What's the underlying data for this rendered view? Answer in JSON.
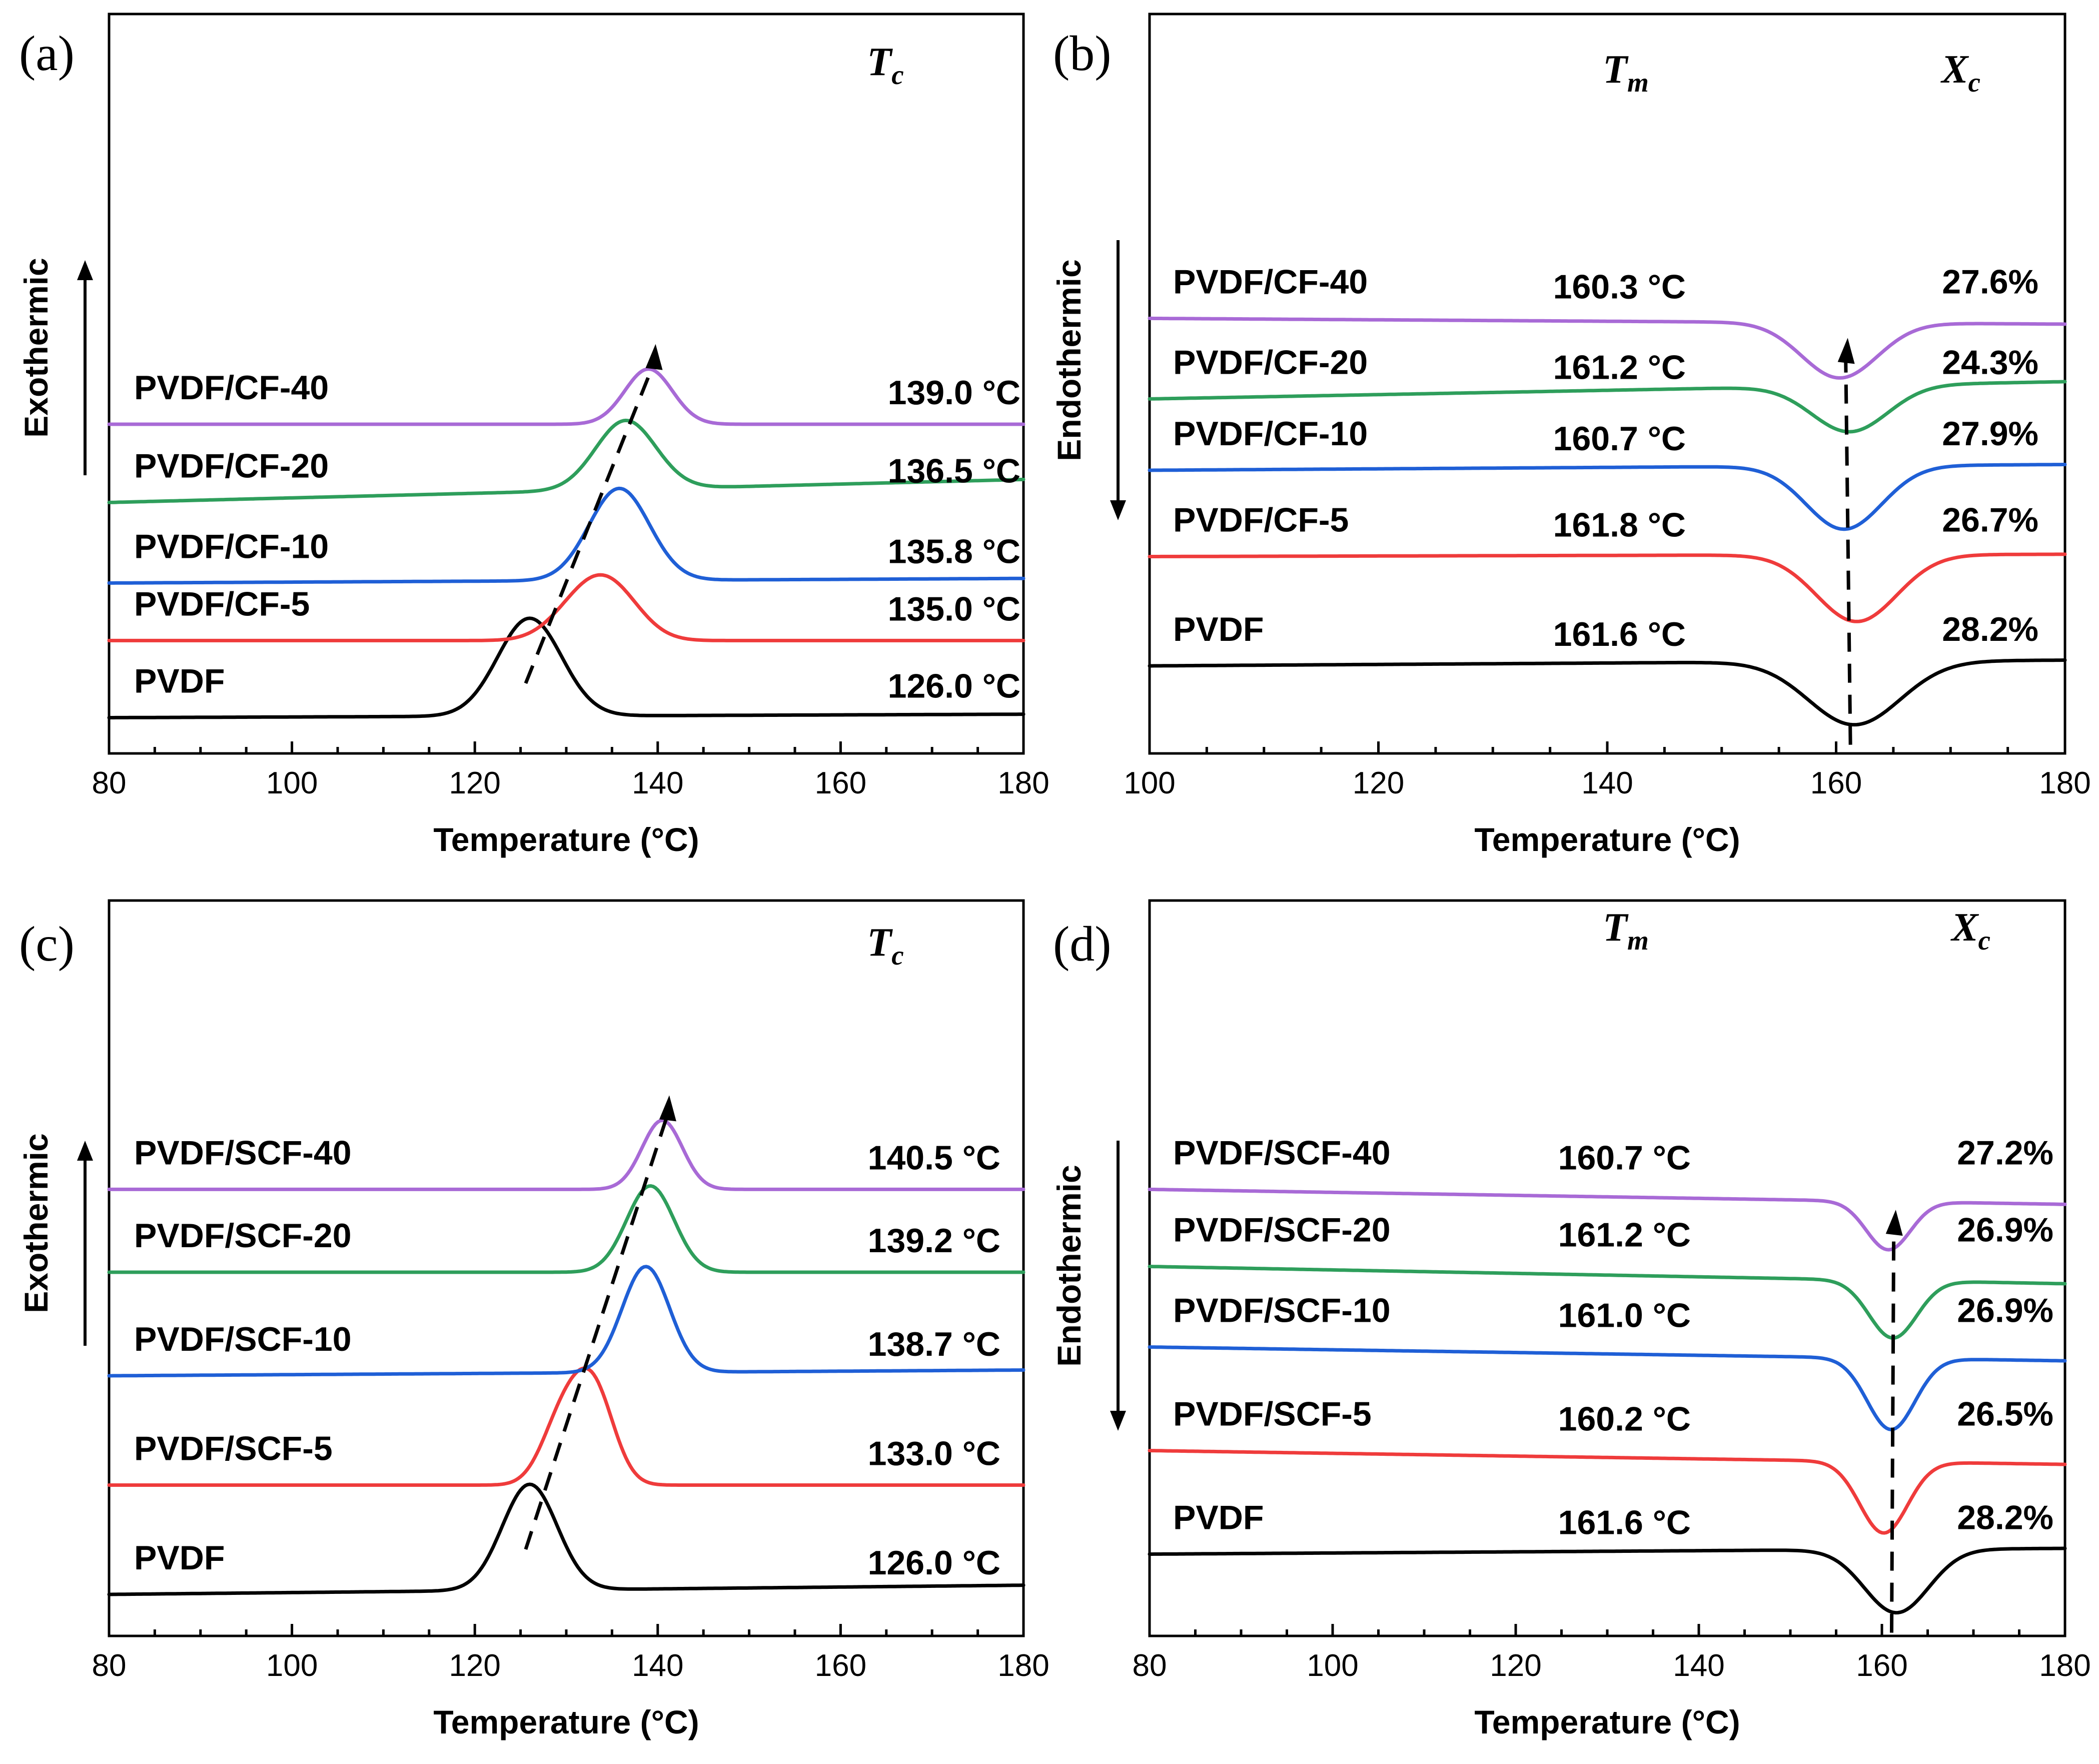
{
  "chart_data": [
    {
      "id": "a",
      "panel_label": "(a)",
      "type": "line",
      "xlabel": "Temperature (°C)",
      "ylabel": "Exothermic",
      "xlim": [
        80,
        180
      ],
      "xticks": [
        80,
        100,
        120,
        140,
        160,
        180
      ],
      "peak_type": "exo",
      "direction": "up",
      "header": {
        "symbol": "T",
        "sub": "c"
      },
      "series": [
        {
          "name": "PVDF",
          "color": "#000000",
          "peak_temp": 126.0,
          "value_label": "126.0 °C",
          "width": 3.5,
          "height": 0.85,
          "baseline": 0.05,
          "slope": 0.03
        },
        {
          "name": "PVDF/CF-5",
          "color": "#ef3b3b",
          "peak_temp": 135.0,
          "value_label": "135.0 °C",
          "width": 4.0,
          "height": 0.48,
          "baseline": 0.72,
          "slope": 0.0
        },
        {
          "name": "PVDF/CF-10",
          "color": "#1f5fd6",
          "peak_temp": 135.8,
          "value_label": "135.8 °C",
          "width": 3.3,
          "height": 0.8,
          "baseline": 1.22,
          "slope": 0.04
        },
        {
          "name": "PVDF/CF-20",
          "color": "#2e9e5b",
          "peak_temp": 136.5,
          "value_label": "136.5 °C",
          "width": 3.3,
          "height": 0.6,
          "baseline": 1.92,
          "slope": 0.2
        },
        {
          "name": "PVDF/CF-40",
          "color": "#a86ad6",
          "peak_temp": 139.0,
          "value_label": "139.0 °C",
          "width": 2.6,
          "height": 0.48,
          "baseline": 2.6,
          "slope": 0.0
        }
      ]
    },
    {
      "id": "b",
      "panel_label": "(b)",
      "type": "line",
      "xlabel": "Temperature (°C)",
      "ylabel": "Endothermic",
      "xlim": [
        100,
        180
      ],
      "xticks": [
        100,
        120,
        140,
        160,
        180
      ],
      "peak_type": "endo",
      "direction": "down",
      "header": {
        "symbol": "T",
        "sub": "m"
      },
      "header2": {
        "symbol": "X",
        "sub": "c"
      },
      "series": [
        {
          "name": "PVDF",
          "color": "#000000",
          "peak_temp": 161.6,
          "value_label": "161.6 °C",
          "xc_label": "28.2%",
          "width": 4.0,
          "height": 0.55,
          "baseline": 0.5,
          "slope": 0.05
        },
        {
          "name": "PVDF/CF-5",
          "color": "#ef3b3b",
          "peak_temp": 161.8,
          "value_label": "161.8 °C",
          "width": 3.5,
          "height": 0.58,
          "baseline": 1.45,
          "slope": 0.02,
          "xc_label": "26.7%"
        },
        {
          "name": "PVDF/CF-10",
          "color": "#1f5fd6",
          "peak_temp": 160.7,
          "value_label": "160.7 °C",
          "width": 3.3,
          "height": 0.55,
          "baseline": 2.2,
          "slope": 0.05,
          "xc_label": "27.9%"
        },
        {
          "name": "PVDF/CF-20",
          "color": "#2e9e5b",
          "peak_temp": 161.2,
          "value_label": "161.2 °C",
          "width": 3.3,
          "height": 0.4,
          "baseline": 2.82,
          "slope": 0.15,
          "xc_label": "24.3%"
        },
        {
          "name": "PVDF/CF-40",
          "color": "#a86ad6",
          "peak_temp": 160.3,
          "value_label": "160.3 °C",
          "width": 3.3,
          "height": 0.48,
          "baseline": 3.52,
          "slope": -0.05,
          "xc_label": "27.6%"
        }
      ]
    },
    {
      "id": "c",
      "panel_label": "(c)",
      "type": "line",
      "xlabel": "Temperature (°C)",
      "ylabel": "Exothermic",
      "xlim": [
        80,
        180
      ],
      "xticks": [
        80,
        100,
        120,
        140,
        160,
        180
      ],
      "peak_type": "exo",
      "direction": "up",
      "header": {
        "symbol": "T",
        "sub": "c"
      },
      "series": [
        {
          "name": "PVDF",
          "color": "#000000",
          "peak_temp": 126.0,
          "value_label": "126.0 °C",
          "width": 3.0,
          "height": 0.92,
          "baseline": 0.1,
          "slope": 0.08
        },
        {
          "name": "PVDF/SCF-5",
          "color": "#ef3b3b",
          "peak_temp": 133.0,
          "value_label": "133.0 °C",
          "width": 2.8,
          "height": 0.98,
          "baseline": 1.05,
          "slope": 0.0
        },
        {
          "name": "PVDF/SCF-10",
          "color": "#1f5fd6",
          "peak_temp": 138.7,
          "value_label": "138.7 °C",
          "width": 2.6,
          "height": 0.92,
          "baseline": 2.0,
          "slope": 0.05
        },
        {
          "name": "PVDF/SCF-20",
          "color": "#2e9e5b",
          "peak_temp": 139.2,
          "value_label": "139.2 °C",
          "width": 2.6,
          "height": 0.75,
          "baseline": 2.9,
          "slope": 0.0
        },
        {
          "name": "PVDF/SCF-40",
          "color": "#a86ad6",
          "peak_temp": 140.5,
          "value_label": "140.5 °C",
          "width": 2.2,
          "height": 0.6,
          "baseline": 3.62,
          "slope": 0.0
        }
      ]
    },
    {
      "id": "d",
      "panel_label": "(d)",
      "type": "line",
      "xlabel": "Temperature (°C)",
      "ylabel": "Endothermic",
      "xlim": [
        80,
        180
      ],
      "xticks": [
        80,
        100,
        120,
        140,
        160,
        180
      ],
      "peak_type": "endo",
      "direction": "down",
      "header": {
        "symbol": "T",
        "sub": "m"
      },
      "header2": {
        "symbol": "X",
        "sub": "c"
      },
      "series": [
        {
          "name": "PVDF",
          "color": "#000000",
          "peak_temp": 161.6,
          "value_label": "161.6 °C",
          "xc_label": "28.2%",
          "width": 3.5,
          "height": 0.55,
          "baseline": 0.45,
          "slope": 0.05
        },
        {
          "name": "PVDF/SCF-5",
          "color": "#ef3b3b",
          "peak_temp": 160.2,
          "value_label": "160.2 °C",
          "width": 2.6,
          "height": 0.62,
          "baseline": 1.35,
          "slope": -0.12,
          "xc_label": "26.5%"
        },
        {
          "name": "PVDF/SCF-10",
          "color": "#1f5fd6",
          "peak_temp": 161.0,
          "value_label": "161.0 °C",
          "width": 2.6,
          "height": 0.62,
          "baseline": 2.25,
          "slope": -0.12,
          "xc_label": "26.9%"
        },
        {
          "name": "PVDF/SCF-20",
          "color": "#2e9e5b",
          "peak_temp": 161.2,
          "value_label": "161.2 °C",
          "width": 2.6,
          "height": 0.5,
          "baseline": 2.95,
          "slope": -0.15,
          "xc_label": "26.9%"
        },
        {
          "name": "PVDF/SCF-40",
          "color": "#a86ad6",
          "peak_temp": 160.7,
          "value_label": "160.7 °C",
          "width": 2.4,
          "height": 0.42,
          "baseline": 3.62,
          "slope": -0.13,
          "xc_label": "27.2%"
        }
      ]
    }
  ]
}
